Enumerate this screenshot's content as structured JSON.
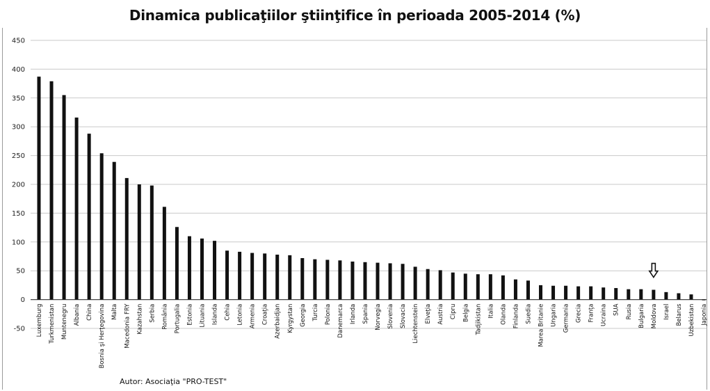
{
  "chart_data": {
    "type": "bar",
    "title": "Dinamica publicaţiilor ştiinţifice în perioada 2005-2014 (%)",
    "xlabel": "",
    "ylabel": "",
    "ylim": [
      -50,
      450
    ],
    "yticks": [
      -50,
      0,
      50,
      100,
      150,
      200,
      250,
      300,
      350,
      400,
      450
    ],
    "grid": true,
    "legend": "none",
    "bar_color": "#111111",
    "categories": [
      "Luxemburg",
      "Turkmenistan",
      "Muntenegru",
      "Albania",
      "China",
      "Bosnia şi Herţegovina",
      "Malta",
      "Macedonia FRY",
      "Kazahstan",
      "Serbia",
      "România",
      "Portugalia",
      "Estonia",
      "Lituania",
      "Islanda",
      "Cehia",
      "Letonia",
      "Armenia",
      "Croaţia",
      "Azerbaidjan",
      "Kyrgystan",
      "Georgia",
      "Turcia",
      "Polonia",
      "Danemarca",
      "Irlanda",
      "Spania",
      "Norvegia",
      "Slovenia",
      "Slovacia",
      "Liechtenstein",
      "Elveţia",
      "Austria",
      "Cipru",
      "Belgia",
      "Tadjikistan",
      "Italia",
      "Olanda",
      "Finlanda",
      "Suedia",
      "Marea Britanie",
      "Ungaria",
      "Germania",
      "Grecia",
      "Franţa",
      "Ucraina",
      "SUA",
      "Rusia",
      "Bulgaria",
      "Moldova",
      "Israel",
      "Belarus",
      "Uzbekistan",
      "Japonia"
    ],
    "values": [
      387,
      379,
      355,
      316,
      288,
      254,
      239,
      211,
      200,
      198,
      161,
      126,
      110,
      106,
      102,
      85,
      83,
      81,
      80,
      78,
      77,
      72,
      70,
      69,
      68,
      66,
      65,
      64,
      63,
      62,
      57,
      53,
      51,
      47,
      45,
      44,
      44,
      42,
      35,
      33,
      25,
      24,
      24,
      23,
      23,
      21,
      20,
      18,
      18,
      17,
      13,
      11,
      9,
      -1
    ],
    "annotations": [
      {
        "type": "arrow",
        "target": "Moldova",
        "direction": "down"
      }
    ],
    "author_note": "Autor: Asociaţia \"PRO-TEST\""
  }
}
